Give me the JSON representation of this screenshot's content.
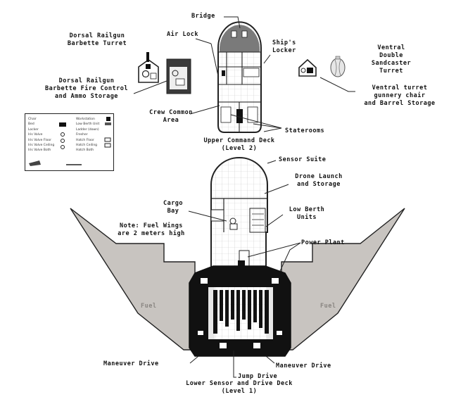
{
  "labels": {
    "bridge": "Bridge",
    "dorsal_turret": [
      "Dorsal Railgun",
      "Barbette Turret"
    ],
    "air_lock": "Air Lock",
    "ships_locker": [
      "Ship's",
      "Locker"
    ],
    "ventral_turret": [
      "Ventral",
      "Double",
      "Sandcaster",
      "Turret"
    ],
    "dorsal_fire_control": [
      "Dorsal Railgun",
      "Barbette Fire Control",
      "and Ammo Storage"
    ],
    "ventral_gunnery": [
      "Ventral turret",
      "gunnery chair",
      "and Barrel Storage"
    ],
    "crew_common": [
      "Crew Common",
      "Area"
    ],
    "staterooms": "Staterooms",
    "upper_deck": [
      "Upper Command Deck",
      "(Level 2)"
    ],
    "sensor_suite": "Sensor Suite",
    "drone_launch": [
      "Drone Launch",
      "and Storage"
    ],
    "cargo_bay": [
      "Cargo",
      "Bay"
    ],
    "low_berth": [
      "Low Berth",
      "Units"
    ],
    "fuel_note": [
      "Note:  Fuel Wings",
      "are 2 meters high"
    ],
    "power_plant": "Power Plant",
    "fuel_left": "Fuel",
    "fuel_right": "Fuel",
    "maneuver_left": "Maneuver Drive",
    "jump_drive": "Jump Drive",
    "maneuver_right": "Maneuver Drive",
    "lower_deck": [
      "Lower Sensor and Drive Deck",
      "(Level 1)"
    ]
  },
  "legend": {
    "left_items": [
      "Chair",
      "Bed",
      "Locker",
      "Iris Valve",
      "Iris Valve Floor",
      "Iris Valve Ceiling",
      "Iris Valve Both"
    ],
    "right_items": [
      "Workstation",
      "Low Berth Unit",
      "Ladder (down)",
      "Fresher",
      "Hatch Floor",
      "Hatch Ceiling",
      "Hatch Both"
    ]
  }
}
